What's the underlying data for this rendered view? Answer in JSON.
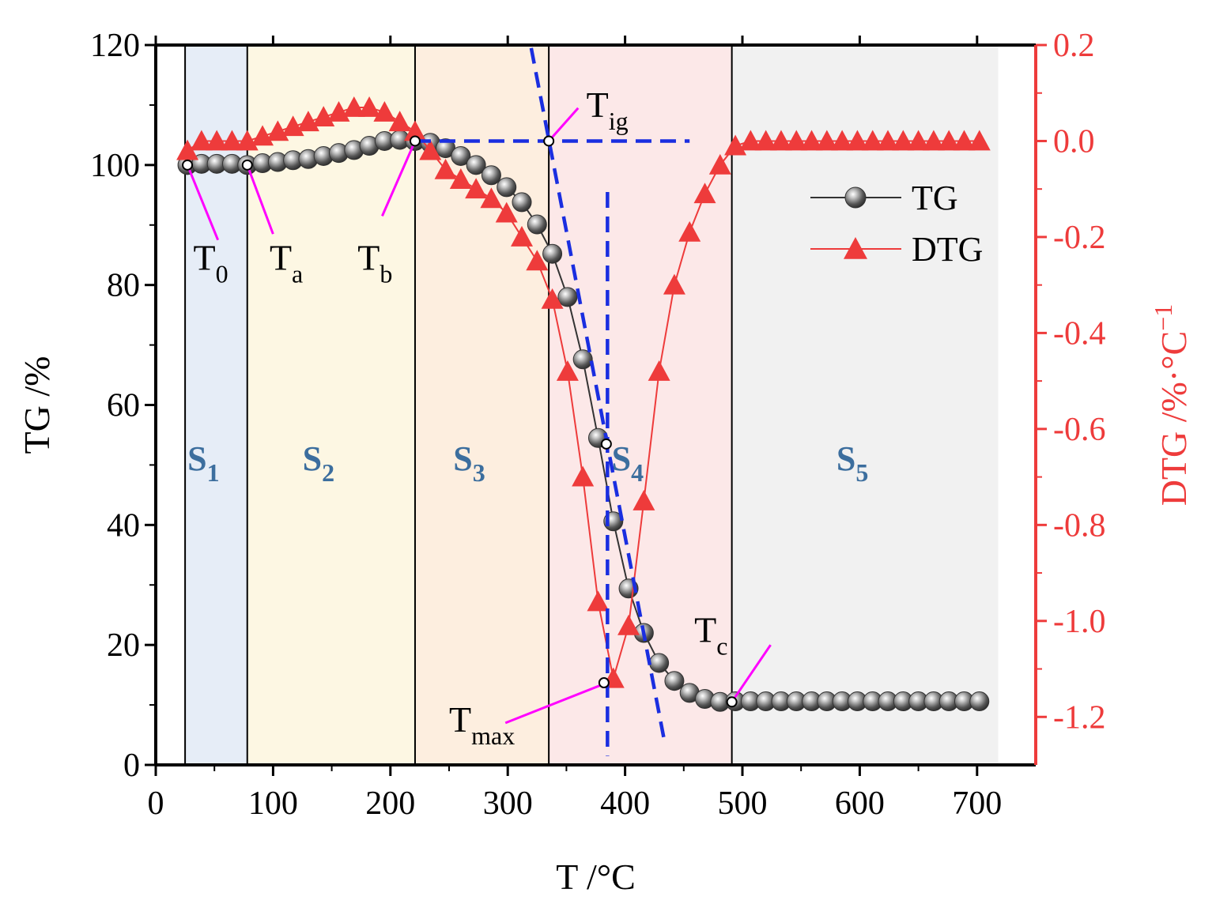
{
  "chart_data": {
    "type": "line",
    "title": "",
    "xlabel": "T /°C",
    "ylabel_left": "TG /%",
    "ylabel_right": "DTG /%·°C",
    "ylabel_right_sup": "−1",
    "xlim": [
      0,
      750
    ],
    "ylim_left": [
      0,
      120
    ],
    "ylim_right": [
      -1.3,
      0.2
    ],
    "x_ticks": [
      0,
      100,
      200,
      300,
      400,
      500,
      600,
      700
    ],
    "x_tick_labels": [
      "0",
      "100",
      "200",
      "300",
      "400",
      "500",
      "600",
      "700"
    ],
    "y_left_ticks": [
      0,
      20,
      40,
      60,
      80,
      100,
      120
    ],
    "y_left_tick_labels": [
      "0",
      "20",
      "40",
      "60",
      "80",
      "100",
      "120"
    ],
    "y_right_ticks": [
      0.2,
      0.0,
      -0.2,
      -0.4,
      -0.6,
      -0.8,
      -1.0,
      -1.2
    ],
    "y_right_tick_labels": [
      "0.2",
      "0.0",
      "-0.2",
      "-0.4",
      "-0.6",
      "-0.8",
      "-1.0",
      "-1.2"
    ],
    "colors": {
      "tg": "#555555",
      "dtg": "#ee3b3b",
      "right_axis": "#ee3b3b",
      "stage_text": "#3c6e9e",
      "annotation": "#ff00ff",
      "tangent": "#1a2ee0",
      "s1": "#e6edf7",
      "s2": "#fdf7e3",
      "s3": "#fdeedf",
      "s4": "#fce8e8",
      "s5": "#f1f1f1"
    },
    "stages": [
      {
        "label": "S",
        "sub": "1",
        "from": 25,
        "to": 78
      },
      {
        "label": "S",
        "sub": "2",
        "from": 78,
        "to": 221
      },
      {
        "label": "S",
        "sub": "3",
        "from": 221,
        "to": 335
      },
      {
        "label": "S",
        "sub": "4",
        "from": 335,
        "to": 491
      },
      {
        "label": "S",
        "sub": "5",
        "from": 491,
        "to": 718
      }
    ],
    "stage_label_y": 51,
    "series": [
      {
        "name": "TG",
        "axis": "left",
        "marker": "sphere",
        "x": [
          27,
          39,
          52,
          65,
          78,
          91,
          104,
          117,
          130,
          143,
          156,
          169,
          182,
          195,
          208,
          221,
          234,
          247,
          260,
          273,
          286,
          299,
          312,
          325,
          338,
          351,
          364,
          377,
          390,
          403,
          416,
          429,
          442,
          455,
          468,
          481,
          494,
          507,
          520,
          533,
          546,
          559,
          572,
          585,
          598,
          611,
          624,
          637,
          650,
          663,
          676,
          689,
          702
        ],
        "values": [
          100,
          100.2,
          100.2,
          100.2,
          100,
          100.3,
          100.5,
          100.8,
          101,
          101.5,
          102,
          102.5,
          103.2,
          104,
          104.2,
          104,
          103.7,
          102.8,
          101.5,
          100,
          98.3,
          96.3,
          93.8,
          90.1,
          85.2,
          78,
          67.6,
          54.5,
          40.6,
          29.4,
          22,
          17,
          14,
          12,
          11,
          10.5,
          10.6,
          10.6,
          10.6,
          10.6,
          10.6,
          10.6,
          10.6,
          10.6,
          10.6,
          10.6,
          10.6,
          10.6,
          10.6,
          10.6,
          10.6,
          10.6,
          10.6
        ]
      },
      {
        "name": "DTG",
        "axis": "right",
        "marker": "triangle",
        "x": [
          27,
          39,
          52,
          65,
          78,
          91,
          104,
          117,
          130,
          143,
          156,
          169,
          182,
          195,
          208,
          221,
          234,
          247,
          260,
          273,
          286,
          299,
          312,
          325,
          338,
          351,
          364,
          377,
          390,
          403,
          416,
          429,
          442,
          455,
          468,
          481,
          494,
          507,
          520,
          533,
          546,
          559,
          572,
          585,
          598,
          611,
          624,
          637,
          650,
          663,
          676,
          689,
          702
        ],
        "values": [
          -0.02,
          0,
          0,
          0,
          0,
          0.01,
          0.02,
          0.03,
          0.04,
          0.05,
          0.06,
          0.07,
          0.07,
          0.06,
          0.04,
          0.02,
          -0.02,
          -0.06,
          -0.08,
          -0.1,
          -0.12,
          -0.15,
          -0.2,
          -0.25,
          -0.33,
          -0.48,
          -0.7,
          -0.96,
          -1.12,
          -1.01,
          -0.75,
          -0.48,
          -0.3,
          -0.19,
          -0.11,
          -0.05,
          -0.01,
          0,
          0,
          0,
          0,
          0,
          0,
          0,
          0,
          0,
          0,
          0,
          0,
          0,
          0,
          0,
          0
        ]
      }
    ],
    "markers_open": [
      {
        "name": "T0",
        "x": 27,
        "y": 100
      },
      {
        "name": "Ta",
        "x": 78,
        "y": 100
      },
      {
        "name": "Tb",
        "x": 221,
        "y": 104
      },
      {
        "name": "Tig",
        "x": 335,
        "y": 104
      },
      {
        "name": "Tmax",
        "x": 382,
        "y": 13.7
      },
      {
        "name": "T54",
        "x": 384,
        "y": 53.5
      },
      {
        "name": "Tc",
        "x": 491,
        "y": 10.5
      }
    ],
    "tangent_lines": [
      {
        "name": "horizontal-tangent",
        "x1": 221,
        "y1": 104,
        "x2": 455,
        "y2": 104
      },
      {
        "name": "inflection-tangent",
        "x1": 320,
        "y1": 119.5,
        "x2": 433,
        "y2": 4.5
      },
      {
        "name": "tmax-vertical",
        "x1": 385,
        "y1": 95.5,
        "x2": 385,
        "y2": 1.5
      }
    ],
    "annotations": [
      {
        "id": "T0",
        "main": "T",
        "sub": "0",
        "tx": 32,
        "ty": 82.5,
        "lx1": 27,
        "ly1": 100,
        "lx2": 53,
        "ly2": 87.5
      },
      {
        "id": "Ta",
        "main": "T",
        "sub": "a",
        "tx": 97,
        "ty": 82.5,
        "lx1": 78,
        "ly1": 100,
        "lx2": 100,
        "ly2": 88.5
      },
      {
        "id": "Tb",
        "main": "T",
        "sub": "b",
        "tx": 172,
        "ty": 82.5,
        "lx1": 221,
        "ly1": 104,
        "lx2": 193,
        "ly2": 91.5
      },
      {
        "id": "Tig",
        "main": "T",
        "sub": "ig",
        "tx": 367,
        "ty": 108,
        "lx1": 335,
        "ly1": 104,
        "lx2": 360,
        "ly2": 109.5
      },
      {
        "id": "Tmax",
        "main": "T",
        "sub": "max",
        "tx": 250,
        "ty": 5.5,
        "lx1": 382,
        "ly1": 13.5,
        "lx2": 298,
        "ly2": 7
      },
      {
        "id": "Tc",
        "main": "T",
        "sub": "c",
        "tx": 459,
        "ty": 20.5,
        "lx1": 491,
        "ly1": 10.5,
        "lx2": 524,
        "ly2": 20
      }
    ],
    "legend": {
      "placement": "top-right",
      "entries": [
        {
          "label": "TG",
          "series": "TG"
        },
        {
          "label": "DTG",
          "series": "DTG"
        }
      ]
    }
  }
}
